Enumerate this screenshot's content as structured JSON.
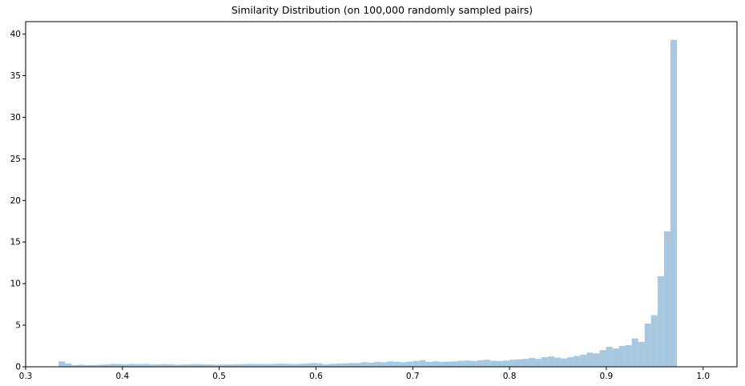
{
  "chart_data": {
    "type": "bar",
    "title": "Similarity Distribution (on 100,000 randomly sampled pairs)",
    "xlabel": "",
    "ylabel": "",
    "xlim": [
      0.3,
      1.035
    ],
    "ylim": [
      0,
      41.5
    ],
    "x_ticks": [
      0.3,
      0.4,
      0.5,
      0.6,
      0.7,
      0.8,
      0.9,
      1.0
    ],
    "x_tick_labels": [
      "0.3",
      "0.4",
      "0.5",
      "0.6",
      "0.7",
      "0.8",
      "0.9",
      "1.0"
    ],
    "y_ticks": [
      0,
      5,
      10,
      15,
      20,
      25,
      30,
      35,
      40
    ],
    "y_tick_labels": [
      "0",
      "5",
      "10",
      "15",
      "20",
      "25",
      "30",
      "35",
      "40"
    ],
    "grid": false,
    "legend": "none",
    "bar_color": "#a6c8e0",
    "bin_start": 0.334,
    "bin_width": 0.006655,
    "values": [
      0.65,
      0.4,
      0.2,
      0.25,
      0.2,
      0.22,
      0.25,
      0.28,
      0.35,
      0.32,
      0.3,
      0.35,
      0.32,
      0.35,
      0.28,
      0.3,
      0.32,
      0.3,
      0.25,
      0.28,
      0.3,
      0.32,
      0.3,
      0.28,
      0.25,
      0.27,
      0.28,
      0.3,
      0.32,
      0.35,
      0.35,
      0.33,
      0.32,
      0.35,
      0.38,
      0.35,
      0.32,
      0.35,
      0.4,
      0.45,
      0.42,
      0.3,
      0.35,
      0.4,
      0.42,
      0.45,
      0.45,
      0.55,
      0.5,
      0.6,
      0.55,
      0.65,
      0.6,
      0.55,
      0.62,
      0.7,
      0.8,
      0.6,
      0.65,
      0.6,
      0.62,
      0.65,
      0.72,
      0.75,
      0.7,
      0.78,
      0.85,
      0.72,
      0.7,
      0.75,
      0.85,
      0.9,
      0.95,
      1.05,
      0.95,
      1.15,
      1.25,
      1.1,
      1.0,
      1.15,
      1.3,
      1.45,
      1.7,
      1.6,
      2.0,
      2.4,
      2.2,
      2.5,
      2.6,
      3.4,
      3.0,
      5.2,
      6.2,
      10.9,
      16.3,
      39.3
    ]
  }
}
